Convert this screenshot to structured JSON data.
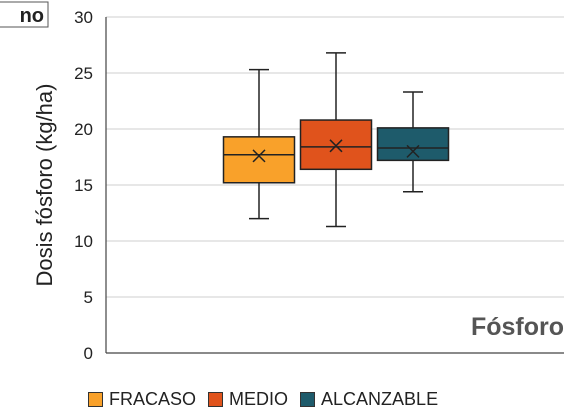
{
  "chart_data": {
    "type": "box",
    "ylabel": "Dosis fósforo (kg/ha)",
    "xlabel": "",
    "ylim": [
      0,
      30
    ],
    "yticks": [
      0,
      5,
      10,
      15,
      20,
      25,
      30
    ],
    "panel_label": "Fósforo",
    "corner_tag": "no",
    "grid": "horizontal",
    "legend_position": "bottom",
    "series": [
      {
        "name": "FRACASO",
        "color": "#F9A12A",
        "min": 12.0,
        "q1": 15.2,
        "median": 17.7,
        "q3": 19.3,
        "max": 25.3,
        "mean": 17.6
      },
      {
        "name": "MEDIO",
        "color": "#E0531C",
        "min": 11.3,
        "q1": 16.4,
        "median": 18.4,
        "q3": 20.8,
        "max": 26.8,
        "mean": 18.5
      },
      {
        "name": "ALCANZABLE",
        "color": "#1E5B6B",
        "min": 14.4,
        "q1": 17.2,
        "median": 18.3,
        "q3": 20.1,
        "max": 23.3,
        "mean": 18.0
      }
    ]
  }
}
